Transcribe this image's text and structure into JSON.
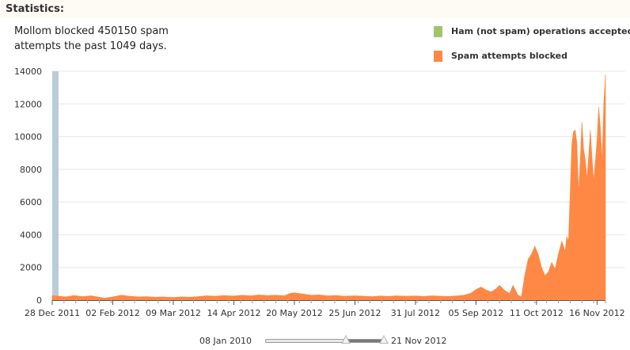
{
  "page": {
    "heading": "Statistics:",
    "summary_line1": "Mollom blocked 450150 spam",
    "summary_line2": "attempts the past 1049 days."
  },
  "legend": [
    {
      "label": "Ham (not spam) operations accepted",
      "color": "#a3c46a"
    },
    {
      "label": "Spam attempts blocked",
      "color": "#ff8844"
    }
  ],
  "range_selector": {
    "start_label": "08 Jan 2010",
    "end_label": "21 Nov 2012",
    "selected_start_fraction": 0.68,
    "selected_end_fraction": 1.0
  },
  "colors": {
    "spam": "#ff8844",
    "ham": "#a3c46a",
    "marker": "#b8ccdc",
    "grid": "#e8e8e8",
    "axis": "#555555"
  },
  "chart_data": {
    "type": "area",
    "title": "",
    "xlabel": "",
    "ylabel": "",
    "ylim": [
      0,
      14000
    ],
    "yticks": [
      0,
      2000,
      4000,
      6000,
      8000,
      10000,
      12000,
      14000
    ],
    "xlim": [
      "2011-12-28",
      "2012-11-21"
    ],
    "xtick_labels": [
      {
        "date": "2011-12-28",
        "label": "28 Dec 2011"
      },
      {
        "date": "2012-02-02",
        "label": "02 Feb 2012"
      },
      {
        "date": "2012-03-09",
        "label": "09 Mar 2012"
      },
      {
        "date": "2012-04-14",
        "label": "14 Apr 2012"
      },
      {
        "date": "2012-05-20",
        "label": "20 May 2012"
      },
      {
        "date": "2012-06-25",
        "label": "25 Jun 2012"
      },
      {
        "date": "2012-07-31",
        "label": "31 Jul 2012"
      },
      {
        "date": "2012-09-05",
        "label": "05 Sep 2012"
      },
      {
        "date": "2012-10-11",
        "label": "11 Oct 2012"
      },
      {
        "date": "2012-11-16",
        "label": "16 Nov 2012"
      }
    ],
    "grid": true,
    "legend_position": "top-right",
    "marker_bar": {
      "date": "2011-12-28",
      "value": 14000
    },
    "series": [
      {
        "name": "Ham (not spam) operations accepted",
        "points": []
      },
      {
        "name": "Spam attempts blocked",
        "points": [
          [
            "2011-12-28",
            280
          ],
          [
            "2011-12-31",
            250
          ],
          [
            "2012-01-05",
            200
          ],
          [
            "2012-01-10",
            280
          ],
          [
            "2012-01-15",
            220
          ],
          [
            "2012-01-20",
            260
          ],
          [
            "2012-01-25",
            180
          ],
          [
            "2012-01-28",
            120
          ],
          [
            "2012-02-02",
            200
          ],
          [
            "2012-02-07",
            300
          ],
          [
            "2012-02-12",
            240
          ],
          [
            "2012-02-17",
            200
          ],
          [
            "2012-02-22",
            220
          ],
          [
            "2012-02-27",
            180
          ],
          [
            "2012-03-03",
            200
          ],
          [
            "2012-03-09",
            160
          ],
          [
            "2012-03-14",
            200
          ],
          [
            "2012-03-19",
            180
          ],
          [
            "2012-03-24",
            220
          ],
          [
            "2012-03-29",
            260
          ],
          [
            "2012-04-03",
            240
          ],
          [
            "2012-04-08",
            280
          ],
          [
            "2012-04-14",
            250
          ],
          [
            "2012-04-19",
            300
          ],
          [
            "2012-04-24",
            260
          ],
          [
            "2012-04-29",
            320
          ],
          [
            "2012-05-04",
            280
          ],
          [
            "2012-05-09",
            300
          ],
          [
            "2012-05-14",
            260
          ],
          [
            "2012-05-17",
            400
          ],
          [
            "2012-05-20",
            450
          ],
          [
            "2012-05-25",
            380
          ],
          [
            "2012-05-30",
            300
          ],
          [
            "2012-06-04",
            320
          ],
          [
            "2012-06-09",
            260
          ],
          [
            "2012-06-14",
            280
          ],
          [
            "2012-06-19",
            240
          ],
          [
            "2012-06-25",
            260
          ],
          [
            "2012-06-30",
            240
          ],
          [
            "2012-07-05",
            220
          ],
          [
            "2012-07-10",
            250
          ],
          [
            "2012-07-15",
            230
          ],
          [
            "2012-07-20",
            260
          ],
          [
            "2012-07-25",
            240
          ],
          [
            "2012-07-31",
            250
          ],
          [
            "2012-08-05",
            230
          ],
          [
            "2012-08-10",
            260
          ],
          [
            "2012-08-15",
            240
          ],
          [
            "2012-08-20",
            230
          ],
          [
            "2012-08-25",
            260
          ],
          [
            "2012-08-29",
            300
          ],
          [
            "2012-09-02",
            420
          ],
          [
            "2012-09-05",
            650
          ],
          [
            "2012-09-08",
            800
          ],
          [
            "2012-09-11",
            620
          ],
          [
            "2012-09-14",
            500
          ],
          [
            "2012-09-17",
            700
          ],
          [
            "2012-09-19",
            900
          ],
          [
            "2012-09-22",
            600
          ],
          [
            "2012-09-25",
            400
          ],
          [
            "2012-09-27",
            900
          ],
          [
            "2012-09-30",
            300
          ],
          [
            "2012-10-02",
            200
          ],
          [
            "2012-10-04",
            1500
          ],
          [
            "2012-10-06",
            2500
          ],
          [
            "2012-10-08",
            2800
          ],
          [
            "2012-10-10",
            3300
          ],
          [
            "2012-10-12",
            2800
          ],
          [
            "2012-10-14",
            2000
          ],
          [
            "2012-10-16",
            1500
          ],
          [
            "2012-10-18",
            1700
          ],
          [
            "2012-10-20",
            2300
          ],
          [
            "2012-10-22",
            1900
          ],
          [
            "2012-10-24",
            2800
          ],
          [
            "2012-10-26",
            3600
          ],
          [
            "2012-10-28",
            3000
          ],
          [
            "2012-10-29",
            3900
          ],
          [
            "2012-10-30",
            3600
          ],
          [
            "2012-10-31",
            6500
          ],
          [
            "2012-11-01",
            9500
          ],
          [
            "2012-11-02",
            10300
          ],
          [
            "2012-11-03",
            10400
          ],
          [
            "2012-11-04",
            9600
          ],
          [
            "2012-11-05",
            6500
          ],
          [
            "2012-11-06",
            8500
          ],
          [
            "2012-11-07",
            10900
          ],
          [
            "2012-11-08",
            9200
          ],
          [
            "2012-11-09",
            8600
          ],
          [
            "2012-11-10",
            7400
          ],
          [
            "2012-11-11",
            8800
          ],
          [
            "2012-11-12",
            10400
          ],
          [
            "2012-11-13",
            8700
          ],
          [
            "2012-11-14",
            7300
          ],
          [
            "2012-11-15",
            8500
          ],
          [
            "2012-11-16",
            9800
          ],
          [
            "2012-11-17",
            11800
          ],
          [
            "2012-11-18",
            10500
          ],
          [
            "2012-11-19",
            8500
          ],
          [
            "2012-11-20",
            12000
          ],
          [
            "2012-11-21",
            13800
          ]
        ]
      }
    ]
  }
}
